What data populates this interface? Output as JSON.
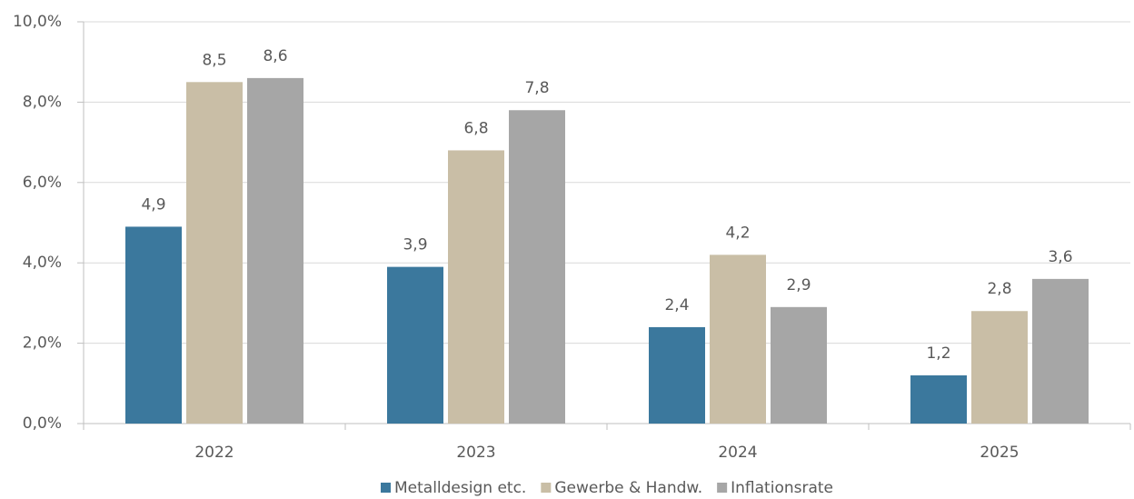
{
  "chart_data": {
    "type": "bar",
    "categories": [
      "2022",
      "2023",
      "2024",
      "2025"
    ],
    "series": [
      {
        "name": "Metalldesign etc.",
        "color": "#3b789d",
        "values": [
          4.9,
          3.9,
          2.4,
          1.2
        ],
        "value_labels": [
          "4,9",
          "3,9",
          "2,4",
          "1,2"
        ]
      },
      {
        "name": "Gewerbe & Handw.",
        "color": "#c9bea6",
        "values": [
          8.5,
          6.8,
          4.2,
          2.8
        ],
        "value_labels": [
          "8,5",
          "6,8",
          "4,2",
          "2,8"
        ]
      },
      {
        "name": "Inflationsrate",
        "color": "#a6a6a6",
        "values": [
          8.6,
          7.8,
          2.9,
          3.6
        ],
        "value_labels": [
          "8,6",
          "7,8",
          "2,9",
          "3,6"
        ]
      }
    ],
    "ylim": [
      0,
      10
    ],
    "yticks": [
      {
        "value": 0,
        "label": "0,0%"
      },
      {
        "value": 2,
        "label": "2,0%"
      },
      {
        "value": 4,
        "label": "4,0%"
      },
      {
        "value": 6,
        "label": "6,0%"
      },
      {
        "value": 8,
        "label": "8,0%"
      },
      {
        "value": 10,
        "label": "10,0%"
      }
    ],
    "grid": true,
    "legend": "bottom"
  }
}
